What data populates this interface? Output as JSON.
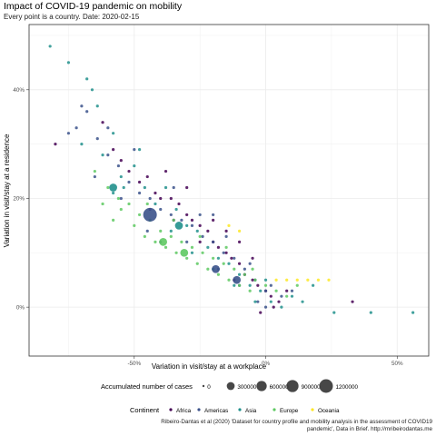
{
  "title": "Impact of COVID-19 pandemic on mobility",
  "subtitle": "Every point is a country. Date: 2020-02-15",
  "caption": "Ribeiro-Dantas et al (2020) 'Dataset for country profile and mobility analysis in the assessment of COVID19 pandemic', Data in Brief. http://mribeirodantas.me",
  "colors": {
    "Africa": "#440154",
    "Americas": "#3b528b",
    "Asia": "#21908c",
    "Europe": "#5ec962",
    "Oceania": "#fde725",
    "grid": "#ebebeb",
    "panel_border": "#333333"
  },
  "chart_data": {
    "type": "scatter",
    "title": "Impact of COVID-19 pandemic on mobility",
    "subtitle": "Every point is a country. Date: 2020-02-15",
    "xlabel": "Variation in visit/stay at a workplace",
    "ylabel": "Variation in visit/stay at a residence",
    "xlim": [
      -0.9,
      0.62
    ],
    "ylim": [
      -0.09,
      0.52
    ],
    "x_ticks": [
      -0.5,
      0,
      0.5
    ],
    "x_tick_labels": [
      "-50%",
      "0%",
      "50%"
    ],
    "y_ticks": [
      0,
      0.2,
      0.4
    ],
    "y_tick_labels": [
      "0%",
      "20%",
      "40%"
    ],
    "grid": true,
    "size_legend": {
      "title": "Accumulated number of cases",
      "values": [
        0,
        300000,
        600000,
        900000,
        1200000
      ],
      "labels": [
        "0",
        "300000",
        "600000",
        "900000",
        "1200000"
      ]
    },
    "color_legend": {
      "title": "Continent",
      "entries": [
        "Africa",
        "Americas",
        "Asia",
        "Europe",
        "Oceania"
      ]
    },
    "series": [
      {
        "name": "Africa",
        "points": [
          [
            -0.8,
            0.3
          ],
          [
            -0.62,
            0.34
          ],
          [
            -0.58,
            0.29
          ],
          [
            -0.55,
            0.27
          ],
          [
            -0.52,
            0.25
          ],
          [
            -0.48,
            0.23
          ],
          [
            -0.45,
            0.24
          ],
          [
            -0.42,
            0.21
          ],
          [
            -0.4,
            0.2
          ],
          [
            -0.36,
            0.2
          ],
          [
            -0.33,
            0.19
          ],
          [
            -0.3,
            0.17
          ],
          [
            -0.28,
            0.16
          ],
          [
            -0.25,
            0.15
          ],
          [
            -0.22,
            0.14
          ],
          [
            -0.2,
            0.12
          ],
          [
            -0.18,
            0.11
          ],
          [
            -0.15,
            0.1
          ],
          [
            -0.13,
            0.09
          ],
          [
            -0.1,
            0.08
          ],
          [
            -0.08,
            0.06
          ],
          [
            -0.05,
            0.05
          ],
          [
            -0.03,
            0.04
          ],
          [
            0.0,
            0.03
          ],
          [
            0.02,
            0.02
          ],
          [
            0.05,
            0.01
          ],
          [
            -0.25,
            0.12
          ],
          [
            -0.35,
            0.16
          ],
          [
            -0.44,
            0.18
          ],
          [
            -0.15,
            0.14
          ],
          [
            -0.05,
            0.09
          ],
          [
            -0.12,
            0.05
          ],
          [
            0.03,
            0.0
          ],
          [
            -0.02,
            -0.01
          ],
          [
            0.33,
            0.01
          ],
          [
            -0.2,
            0.16
          ],
          [
            -0.3,
            0.22
          ],
          [
            -0.1,
            0.12
          ],
          [
            -0.38,
            0.25
          ],
          [
            0.08,
            0.03
          ]
        ]
      },
      {
        "name": "Americas",
        "points": [
          [
            -0.72,
            0.33
          ],
          [
            -0.68,
            0.36
          ],
          [
            -0.64,
            0.31
          ],
          [
            -0.6,
            0.28
          ],
          [
            -0.56,
            0.26
          ],
          [
            -0.52,
            0.23
          ],
          [
            -0.48,
            0.21
          ],
          [
            -0.44,
            0.2
          ],
          [
            -0.4,
            0.18
          ],
          [
            -0.36,
            0.17
          ],
          [
            -0.32,
            0.16
          ],
          [
            -0.28,
            0.15
          ],
          [
            -0.24,
            0.13
          ],
          [
            -0.2,
            0.12
          ],
          [
            -0.16,
            0.1
          ],
          [
            -0.12,
            0.09
          ],
          [
            -0.08,
            0.07
          ],
          [
            -0.04,
            0.05
          ],
          [
            0.0,
            0.03
          ],
          [
            -0.6,
            0.33
          ],
          [
            -0.5,
            0.29
          ],
          [
            -0.35,
            0.22
          ],
          [
            -0.25,
            0.17
          ],
          [
            -0.15,
            0.13
          ],
          [
            -0.06,
            0.08
          ],
          [
            0.02,
            0.04
          ],
          [
            -0.7,
            0.37
          ],
          [
            -0.65,
            0.24
          ],
          [
            -0.45,
            0.14
          ],
          [
            -0.3,
            0.12
          ],
          [
            -0.1,
            0.04
          ],
          [
            -0.03,
            0.01
          ],
          [
            0.06,
            0.02
          ],
          [
            -0.18,
            0.07
          ],
          [
            -0.4,
            0.12
          ],
          [
            -0.55,
            0.2
          ],
          [
            -0.75,
            0.32
          ],
          [
            -0.2,
            0.17
          ],
          [
            0.0,
            0.0
          ],
          [
            0.1,
            0.03
          ]
        ]
      },
      {
        "name": "Asia",
        "points": [
          [
            -0.82,
            0.48
          ],
          [
            -0.75,
            0.45
          ],
          [
            -0.66,
            0.4
          ],
          [
            -0.7,
            0.3
          ],
          [
            -0.62,
            0.28
          ],
          [
            -0.58,
            0.32
          ],
          [
            -0.55,
            0.24
          ],
          [
            -0.5,
            0.26
          ],
          [
            -0.46,
            0.22
          ],
          [
            -0.42,
            0.19
          ],
          [
            -0.38,
            0.22
          ],
          [
            -0.34,
            0.18
          ],
          [
            -0.3,
            0.15
          ],
          [
            -0.26,
            0.14
          ],
          [
            -0.22,
            0.11
          ],
          [
            -0.18,
            0.09
          ],
          [
            -0.14,
            0.08
          ],
          [
            -0.1,
            0.06
          ],
          [
            -0.06,
            0.04
          ],
          [
            -0.02,
            0.03
          ],
          [
            0.02,
            0.01
          ],
          [
            0.06,
            0.0
          ],
          [
            0.1,
            0.02
          ],
          [
            0.14,
            0.01
          ],
          [
            0.56,
            -0.01
          ],
          [
            0.4,
            -0.01
          ],
          [
            0.26,
            -0.01
          ],
          [
            0.18,
            0.04
          ],
          [
            -0.64,
            0.37
          ],
          [
            -0.68,
            0.42
          ],
          [
            -0.54,
            0.22
          ],
          [
            -0.44,
            0.16
          ],
          [
            -0.36,
            0.14
          ],
          [
            -0.28,
            0.1
          ],
          [
            -0.2,
            0.07
          ],
          [
            -0.12,
            0.04
          ],
          [
            -0.04,
            0.01
          ],
          [
            0.0,
            0.05
          ],
          [
            -0.48,
            0.29
          ],
          [
            -0.58,
            0.21
          ]
        ]
      },
      {
        "name": "Europe",
        "points": [
          [
            -0.65,
            0.25
          ],
          [
            -0.6,
            0.22
          ],
          [
            -0.56,
            0.2
          ],
          [
            -0.52,
            0.19
          ],
          [
            -0.48,
            0.17
          ],
          [
            -0.44,
            0.16
          ],
          [
            -0.4,
            0.14
          ],
          [
            -0.36,
            0.13
          ],
          [
            -0.32,
            0.12
          ],
          [
            -0.28,
            0.11
          ],
          [
            -0.24,
            0.1
          ],
          [
            -0.2,
            0.09
          ],
          [
            -0.16,
            0.08
          ],
          [
            -0.12,
            0.07
          ],
          [
            -0.08,
            0.06
          ],
          [
            -0.04,
            0.05
          ],
          [
            0.0,
            0.04
          ],
          [
            0.04,
            0.03
          ],
          [
            -0.5,
            0.15
          ],
          [
            -0.46,
            0.13
          ],
          [
            -0.42,
            0.12
          ],
          [
            -0.38,
            0.11
          ],
          [
            -0.34,
            0.1
          ],
          [
            -0.3,
            0.09
          ],
          [
            -0.26,
            0.08
          ],
          [
            -0.22,
            0.07
          ],
          [
            -0.18,
            0.06
          ],
          [
            -0.14,
            0.05
          ],
          [
            -0.1,
            0.04
          ],
          [
            -0.06,
            0.03
          ],
          [
            -0.55,
            0.18
          ],
          [
            -0.45,
            0.19
          ],
          [
            -0.35,
            0.16
          ],
          [
            -0.25,
            0.13
          ],
          [
            -0.15,
            0.11
          ],
          [
            -0.05,
            0.07
          ],
          [
            -0.62,
            0.19
          ],
          [
            -0.58,
            0.16
          ],
          [
            0.08,
            0.02
          ],
          [
            0.12,
            0.04
          ]
        ]
      },
      {
        "name": "Oceania",
        "points": [
          [
            0.04,
            0.05
          ],
          [
            0.08,
            0.05
          ],
          [
            0.12,
            0.05
          ],
          [
            0.16,
            0.05
          ],
          [
            0.2,
            0.05
          ],
          [
            0.24,
            0.05
          ],
          [
            -0.14,
            0.15
          ],
          [
            -0.1,
            0.14
          ]
        ]
      }
    ],
    "large_points": [
      {
        "continent": "Americas",
        "x": -0.44,
        "y": 0.17,
        "cases": 1200000
      },
      {
        "continent": "Asia",
        "x": -0.33,
        "y": 0.15,
        "cases": 300000
      },
      {
        "continent": "Europe",
        "x": -0.39,
        "y": 0.12,
        "cases": 300000
      },
      {
        "continent": "Americas",
        "x": -0.19,
        "y": 0.07,
        "cases": 300000
      },
      {
        "continent": "Americas",
        "x": -0.11,
        "y": 0.05,
        "cases": 300000
      },
      {
        "continent": "Asia",
        "x": -0.58,
        "y": 0.22,
        "cases": 300000
      },
      {
        "continent": "Europe",
        "x": -0.31,
        "y": 0.1,
        "cases": 300000
      }
    ]
  }
}
